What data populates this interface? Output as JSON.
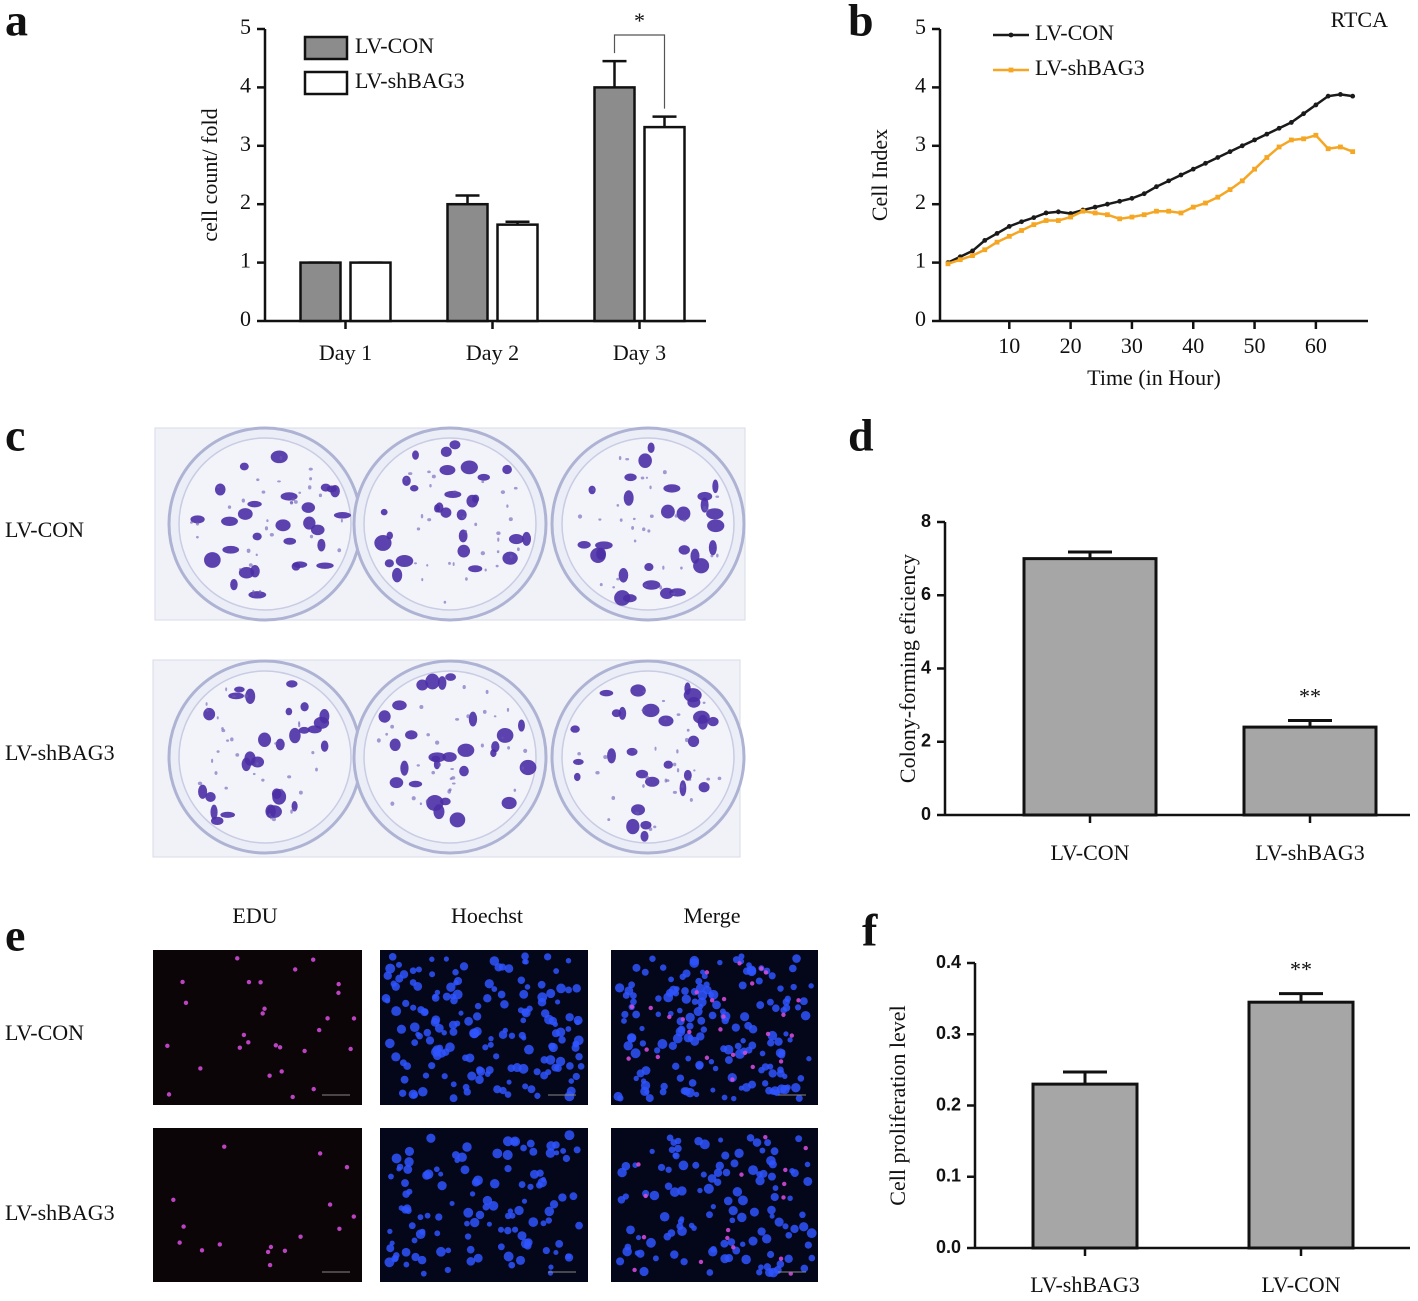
{
  "panels": [
    "a",
    "b",
    "c",
    "d",
    "e",
    "f"
  ],
  "chart_data": [
    {
      "type": "bar",
      "y_label": "cell count/ fold",
      "categories": [
        "Day 1",
        "Day 2",
        "Day 3"
      ],
      "series": [
        {
          "name": "LV-CON",
          "color": "#8c8c8c",
          "values": [
            1,
            2,
            4
          ],
          "errors": [
            0,
            0.15,
            0.45
          ]
        },
        {
          "name": "LV-shBAG3",
          "color": "#ffffff",
          "values": [
            1,
            1.65,
            3.32
          ],
          "errors": [
            0,
            0.05,
            0.18
          ]
        }
      ],
      "ylim": [
        0,
        5
      ],
      "yticks": [
        0,
        1,
        2,
        3,
        4,
        5
      ],
      "annotation": "*"
    },
    {
      "type": "line",
      "title": "RTCA",
      "x_label": "Time (in Hour)",
      "y_label": "Cell Index",
      "x": [
        0,
        2,
        4,
        6,
        8,
        10,
        12,
        14,
        16,
        18,
        20,
        22,
        24,
        26,
        28,
        30,
        32,
        34,
        36,
        38,
        40,
        42,
        44,
        46,
        48,
        50,
        52,
        54,
        56,
        58,
        60,
        62,
        64,
        66
      ],
      "series": [
        {
          "name": "LV-CON",
          "color": "#1a1a1a",
          "values": [
            1.0,
            1.1,
            1.2,
            1.38,
            1.5,
            1.62,
            1.7,
            1.77,
            1.85,
            1.87,
            1.84,
            1.9,
            1.95,
            2.0,
            2.05,
            2.1,
            2.18,
            2.3,
            2.4,
            2.5,
            2.6,
            2.7,
            2.8,
            2.9,
            3.0,
            3.1,
            3.2,
            3.3,
            3.4,
            3.55,
            3.7,
            3.85,
            3.88,
            3.85
          ]
        },
        {
          "name": "LV-shBAG3",
          "color": "#f5a623",
          "values": [
            0.98,
            1.05,
            1.12,
            1.22,
            1.35,
            1.45,
            1.55,
            1.65,
            1.72,
            1.72,
            1.78,
            1.88,
            1.85,
            1.82,
            1.75,
            1.78,
            1.82,
            1.88,
            1.88,
            1.85,
            1.95,
            2.02,
            2.12,
            2.25,
            2.4,
            2.6,
            2.8,
            2.98,
            3.1,
            3.12,
            3.18,
            2.95,
            2.98,
            2.9
          ]
        }
      ],
      "xlim": [
        -1.3,
        68.5
      ],
      "xticks": [
        10,
        20,
        30,
        40,
        50,
        60
      ],
      "ylim": [
        0,
        5
      ],
      "yticks": [
        0,
        1,
        2,
        3,
        4,
        5
      ]
    },
    {
      "type": "bar",
      "y_label": "Colony-forming eficiency",
      "categories": [
        "LV-CON",
        "LV-shBAG3"
      ],
      "values": [
        7.0,
        2.4
      ],
      "errors": [
        0.18,
        0.18
      ],
      "color": "#a6a6a6",
      "ylim": [
        0,
        8
      ],
      "yticks": [
        0,
        2,
        4,
        6,
        8
      ],
      "annotation": "**"
    },
    {
      "type": "bar",
      "y_label": "Cell proliferation level",
      "categories": [
        "LV-shBAG3",
        "LV-CON"
      ],
      "values": [
        0.23,
        0.345
      ],
      "errors": [
        0.017,
        0.012
      ],
      "color": "#a6a6a6",
      "ylim": [
        0,
        0.4
      ],
      "yticks": [
        {
          "value": 0,
          "label": "0.0"
        },
        0.1,
        0.2,
        0.3,
        0.4
      ],
      "annotation": "**"
    }
  ],
  "colony_photos": {
    "rows": [
      "LV-CON",
      "LV-shBAG3"
    ]
  },
  "edu_images": {
    "columns": [
      "EDU",
      "Hoechst",
      "Merge"
    ],
    "rows": [
      "LV-CON",
      "LV-shBAG3"
    ]
  }
}
